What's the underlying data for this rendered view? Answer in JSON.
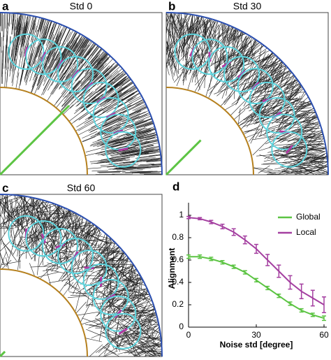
{
  "panels": [
    {
      "label": "a",
      "title": "Std 0"
    },
    {
      "label": "b",
      "title": "Std 30"
    },
    {
      "label": "c",
      "title": "Std 60"
    }
  ],
  "chart_data": {
    "type": "line",
    "label": "d",
    "xlabel": "Noise std [degree]",
    "ylabel": "Alignment",
    "x": [
      0,
      5,
      10,
      15,
      20,
      25,
      30,
      35,
      40,
      45,
      50,
      55,
      60
    ],
    "series": [
      {
        "name": "Global",
        "color": "#5cc443",
        "values": [
          0.63,
          0.63,
          0.61,
          0.58,
          0.54,
          0.49,
          0.42,
          0.35,
          0.28,
          0.21,
          0.15,
          0.11,
          0.08
        ],
        "errors": [
          0.015,
          0.015,
          0.015,
          0.015,
          0.015,
          0.015,
          0.015,
          0.015,
          0.015,
          0.015,
          0.015,
          0.015,
          0.02
        ]
      },
      {
        "name": "Local",
        "color": "#a43fa0",
        "values": [
          0.98,
          0.97,
          0.94,
          0.9,
          0.85,
          0.78,
          0.7,
          0.6,
          0.5,
          0.4,
          0.32,
          0.26,
          0.2
        ],
        "errors": [
          0.01,
          0.01,
          0.015,
          0.02,
          0.03,
          0.035,
          0.04,
          0.05,
          0.055,
          0.06,
          0.065,
          0.07,
          0.07
        ]
      }
    ],
    "xlim": [
      0,
      60
    ],
    "ylim": [
      0,
      1.05
    ],
    "xticks": [
      0,
      30,
      60
    ],
    "yticks": [
      0,
      0.2,
      0.4,
      0.6,
      0.8,
      1
    ],
    "legend": "upper right"
  }
}
